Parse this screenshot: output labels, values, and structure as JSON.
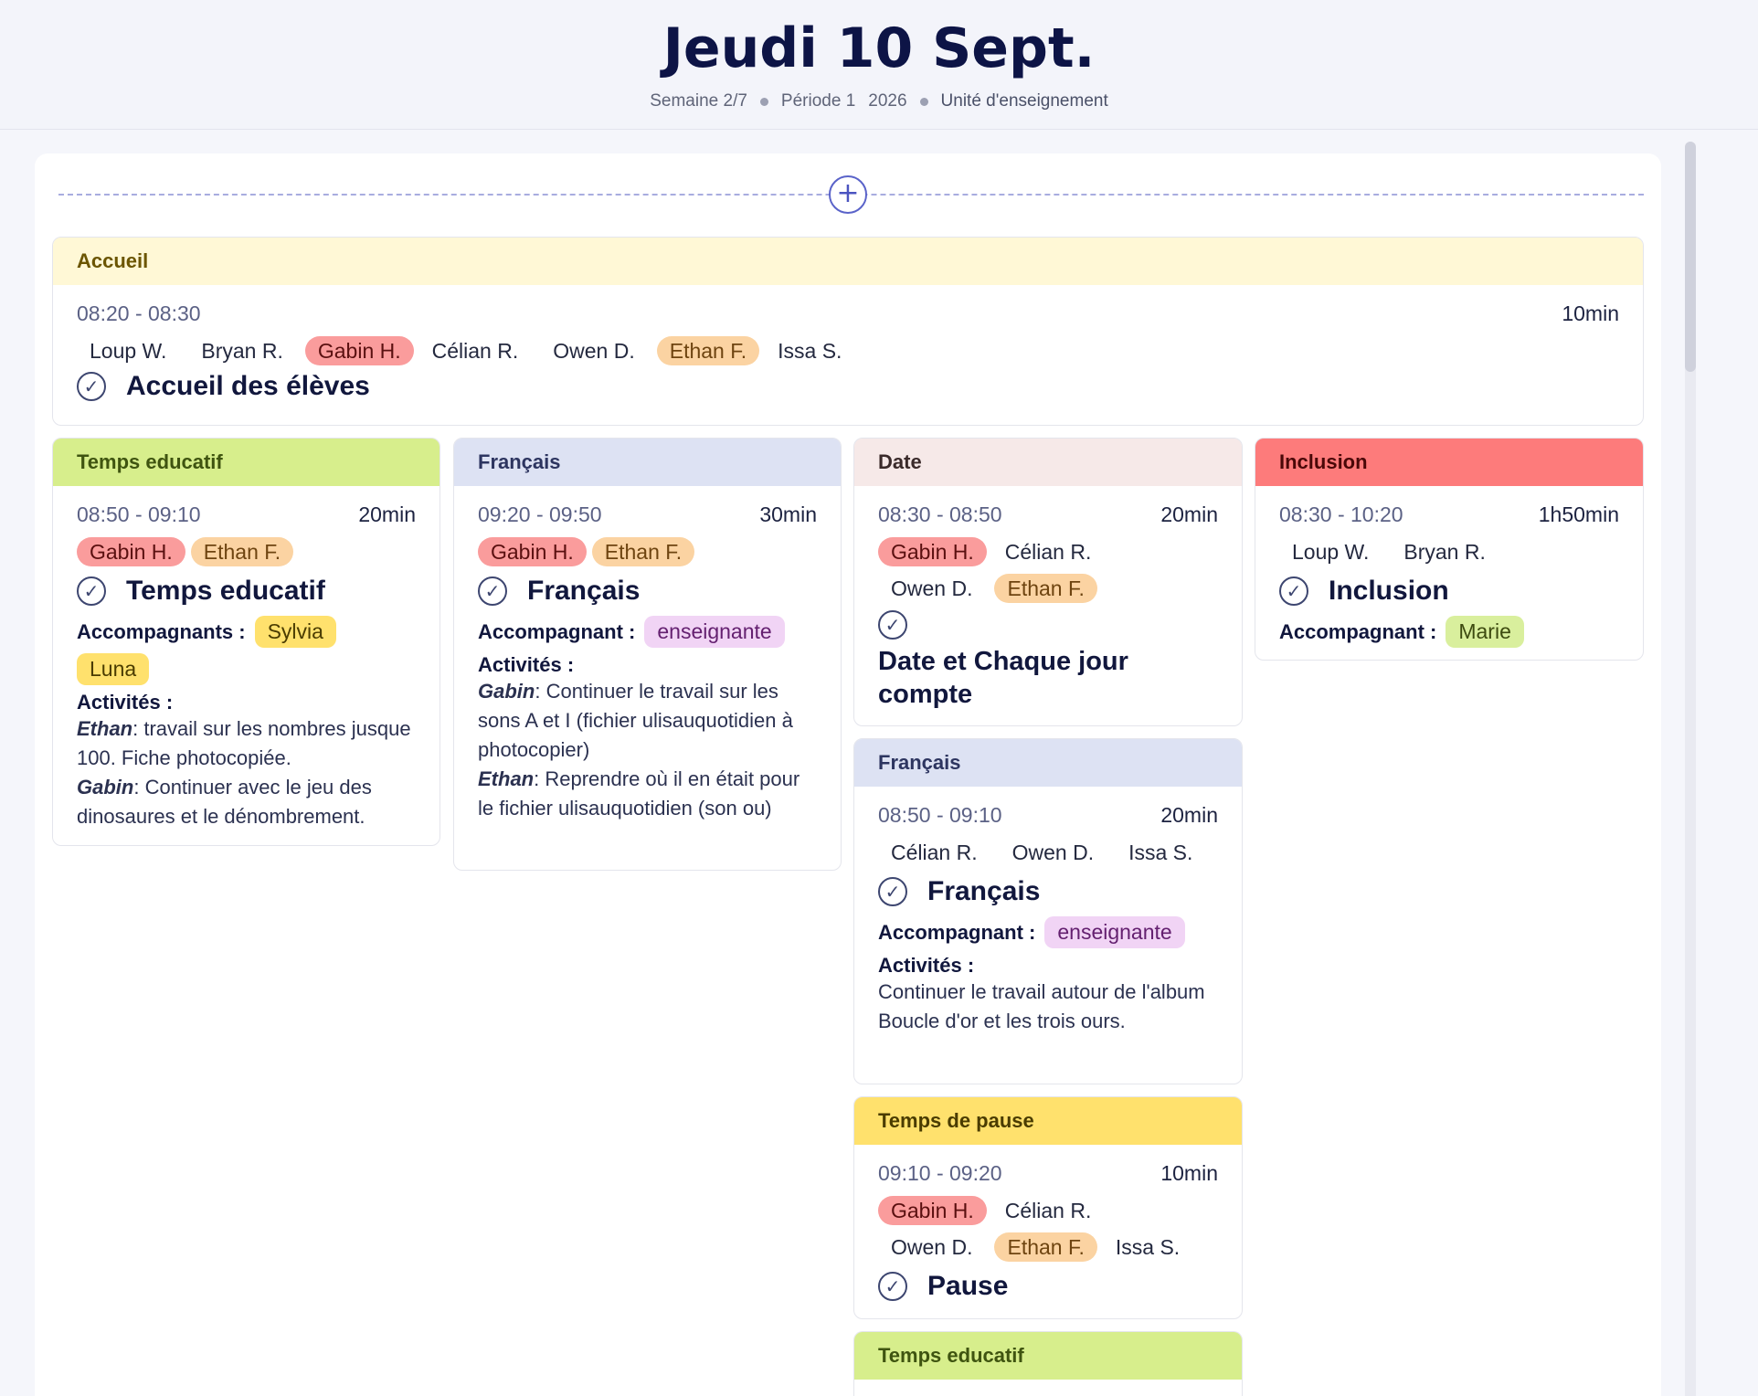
{
  "header": {
    "title": "Jeudi 10 Sept.",
    "week": "Semaine 2/7",
    "period": "Période 1",
    "year": "2026",
    "unit": "Unité d'enseignement"
  },
  "add_button": {
    "label": "+"
  },
  "accueil": {
    "category": "Accueil",
    "time": "08:20 - 08:30",
    "duration": "10min",
    "students": [
      "Loup W.",
      "Bryan R.",
      "Gabin H.",
      "Célian R.",
      "Owen D.",
      "Ethan F.",
      "Issa S."
    ],
    "title": "Accueil des élèves"
  },
  "col1": {
    "category": "Temps educatif",
    "time": "08:50 - 09:10",
    "duration": "20min",
    "students": [
      "Gabin H.",
      "Ethan F."
    ],
    "title": "Temps educatif",
    "companions_label": "Accompagnants :",
    "companions": [
      "Sylvia",
      "Luna"
    ],
    "activities_label": "Activités :",
    "activity1_name": "Ethan",
    "activity1_text": ": travail sur les nombres jusque 100. Fiche photocopiée.",
    "activity2_name": "Gabin",
    "activity2_text": ": Continuer avec le jeu des dinosaures et le dénombrement."
  },
  "col2": {
    "category": "Français",
    "time": "09:20 - 09:50",
    "duration": "30min",
    "students": [
      "Gabin H.",
      "Ethan F."
    ],
    "title": "Français",
    "companion_label": "Accompagnant :",
    "companion": "enseignante",
    "activities_label": "Activités :",
    "activity1_name": "Gabin",
    "activity1_text": ": Continuer le travail sur les sons A et I (fichier ulisauquotidien à photocopier)",
    "activity2_name": "Ethan",
    "activity2_text": ": Reprendre où il en était pour le fichier ulisauquotidien (son ou)"
  },
  "col3_date": {
    "category": "Date",
    "time": "08:30 - 08:50",
    "duration": "20min",
    "students": [
      "Gabin H.",
      "Célian R.",
      "Owen D.",
      "Ethan F."
    ],
    "title": "Date et Chaque jour compte"
  },
  "col3_francais": {
    "category": "Français",
    "time": "08:50 - 09:10",
    "duration": "20min",
    "students": [
      "Célian R.",
      "Owen D.",
      "Issa S."
    ],
    "title": "Français",
    "companion_label": "Accompagnant :",
    "companion": "enseignante",
    "activities_label": "Activités :",
    "activity_text": "Continuer le travail autour de l'album Boucle d'or et les trois ours."
  },
  "col3_pause": {
    "category": "Temps de pause",
    "time": "09:10 - 09:20",
    "duration": "10min",
    "students": [
      "Gabin H.",
      "Célian R.",
      "Owen D.",
      "Ethan F.",
      "Issa S."
    ],
    "title": "Pause"
  },
  "col3_next": {
    "category": "Temps educatif"
  },
  "col4": {
    "category": "Inclusion",
    "time": "08:30 - 10:20",
    "duration": "1h50min",
    "students": [
      "Loup W.",
      "Bryan R."
    ],
    "title": "Inclusion",
    "companion_label": "Accompagnant :",
    "companion": "Marie"
  },
  "colors": {
    "accueil": "#fff8d6",
    "temps_educatif": "#d7ee8c",
    "francais": "#dde2f3",
    "date": "#f6e9e8",
    "inclusion": "#fd7b7b",
    "pause": "#ffe16d"
  },
  "icons": {
    "check": "check-circle-icon",
    "add": "plus-circle-icon"
  }
}
